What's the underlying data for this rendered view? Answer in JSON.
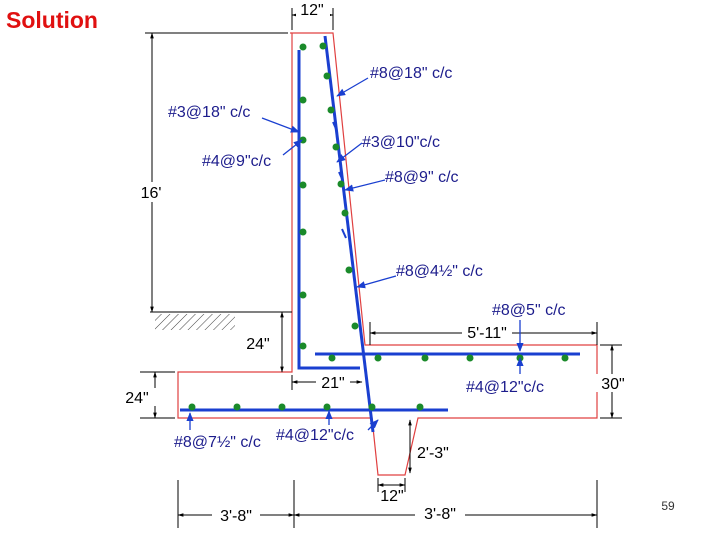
{
  "title": "Solution",
  "page_number": "59",
  "dimensions": [
    "12\"",
    "16'",
    "24\"",
    "24\"",
    "21\"",
    "5'-11\"",
    "30\"",
    "2'-3\"",
    "12\"",
    "3'-8\"",
    "3'-8\""
  ],
  "callouts": [
    "#8@18\" c/c",
    "#3@18\" c/c",
    "#3@10\"c/c",
    "#4@9\"c/c",
    "#8@9\" c/c",
    "#8@4½\" c/c",
    "#8@5\" c/c",
    "#4@12\"c/c",
    "#8@7½\" c/c",
    "#4@12\"c/c"
  ]
}
